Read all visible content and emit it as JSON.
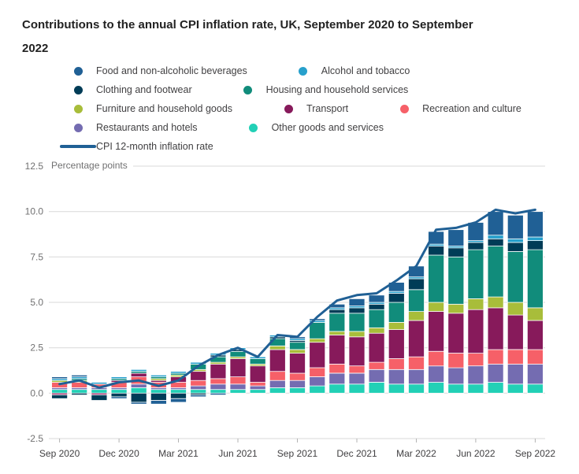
{
  "title": "Contributions to the annual CPI inflation rate, UK, September 2020 to September 2022",
  "chart_data": {
    "type": "bar",
    "subtype": "stacked-bars-with-line-overlay",
    "unit_label": "Percentage points",
    "grid": "horizontal-only",
    "legend_position": "top",
    "x": [
      "Sep 2020",
      "Oct 2020",
      "Nov 2020",
      "Dec 2020",
      "Jan 2021",
      "Feb 2021",
      "Mar 2021",
      "Apr 2021",
      "May 2021",
      "Jun 2021",
      "Jul 2021",
      "Aug 2021",
      "Sep 2021",
      "Oct 2021",
      "Nov 2021",
      "Dec 2021",
      "Jan 2022",
      "Feb 2022",
      "Mar 2022",
      "Apr 2022",
      "May 2022",
      "Jun 2022",
      "Jul 2022",
      "Aug 2022",
      "Sep 2022"
    ],
    "x_tick_every": 3,
    "x_tick_labels": [
      "Sep 2020",
      "Dec 2020",
      "Mar 2021",
      "Jun 2021",
      "Sep 2021",
      "Dec 2021",
      "Mar 2022",
      "Jun 2022",
      "Sep 2022"
    ],
    "ylim": [
      -2.5,
      12.5
    ],
    "yticks": [
      12.5,
      10.0,
      7.5,
      5.0,
      2.5,
      0.0,
      -2.5
    ],
    "series": [
      {
        "name": "Food and non-alcoholic beverages",
        "color": "#206095",
        "values": [
          0.1,
          0.1,
          0.0,
          -0.1,
          -0.1,
          -0.2,
          -0.2,
          -0.1,
          -0.1,
          0.0,
          0.0,
          0.0,
          0.1,
          0.1,
          0.2,
          0.4,
          0.4,
          0.5,
          0.6,
          0.7,
          0.9,
          1.0,
          1.3,
          1.3,
          1.4
        ]
      },
      {
        "name": "Alcohol and tobacco",
        "color": "#27a0cc",
        "values": [
          0.1,
          0.1,
          0.1,
          0.1,
          0.1,
          0.1,
          0.1,
          0.1,
          0.1,
          0.1,
          0.1,
          0.1,
          0.1,
          0.1,
          0.1,
          0.1,
          0.1,
          0.1,
          0.1,
          0.1,
          0.1,
          0.1,
          0.2,
          0.2,
          0.2
        ]
      },
      {
        "name": "Clothing and footwear",
        "color": "#003c57",
        "values": [
          -0.2,
          -0.1,
          -0.3,
          -0.2,
          -0.5,
          -0.4,
          -0.3,
          -0.1,
          0.1,
          0.1,
          0.0,
          0.1,
          0.1,
          0.0,
          0.2,
          0.3,
          0.3,
          0.5,
          0.6,
          0.5,
          0.5,
          0.4,
          0.4,
          0.5,
          0.5
        ]
      },
      {
        "name": "Housing and household services",
        "color": "#118c7b",
        "values": [
          0.0,
          0.1,
          0.0,
          0.1,
          0.1,
          0.1,
          0.1,
          0.3,
          0.3,
          0.3,
          0.3,
          0.4,
          0.4,
          0.9,
          1.0,
          1.0,
          1.0,
          1.1,
          1.2,
          2.6,
          2.6,
          2.7,
          2.8,
          2.8,
          3.2
        ]
      },
      {
        "name": "Furniture and household goods",
        "color": "#a8bd3a",
        "values": [
          0.1,
          0.1,
          0.0,
          0.0,
          0.0,
          0.1,
          0.1,
          0.1,
          0.1,
          0.1,
          0.1,
          0.2,
          0.2,
          0.2,
          0.2,
          0.3,
          0.3,
          0.4,
          0.5,
          0.5,
          0.5,
          0.6,
          0.6,
          0.7,
          0.7
        ]
      },
      {
        "name": "Transport",
        "color": "#871a5b",
        "values": [
          -0.1,
          0.0,
          -0.1,
          0.1,
          0.2,
          0.1,
          0.3,
          0.5,
          0.8,
          1.0,
          0.9,
          1.2,
          1.1,
          1.4,
          1.6,
          1.6,
          1.6,
          1.6,
          2.0,
          2.2,
          2.2,
          2.4,
          2.3,
          1.9,
          1.6
        ]
      },
      {
        "name": "Recreation and culture",
        "color": "#f66068",
        "values": [
          0.3,
          0.3,
          0.2,
          0.3,
          0.4,
          0.3,
          0.3,
          0.3,
          0.3,
          0.4,
          0.2,
          0.5,
          0.4,
          0.5,
          0.5,
          0.4,
          0.4,
          0.6,
          0.7,
          0.8,
          0.8,
          0.7,
          0.8,
          0.8,
          0.8
        ]
      },
      {
        "name": "Restaurants and hotels",
        "color": "#746cb1",
        "values": [
          0.1,
          0.1,
          0.1,
          0.1,
          0.2,
          0.1,
          0.1,
          0.2,
          0.3,
          0.3,
          0.2,
          0.4,
          0.4,
          0.5,
          0.6,
          0.6,
          0.7,
          0.8,
          0.8,
          0.9,
          0.9,
          1.0,
          1.0,
          1.1,
          1.1
        ]
      },
      {
        "name": "Other goods and services",
        "color": "#22d0b6",
        "values": [
          0.2,
          0.2,
          0.2,
          0.2,
          0.3,
          0.2,
          0.2,
          0.2,
          0.2,
          0.2,
          0.2,
          0.3,
          0.3,
          0.4,
          0.5,
          0.5,
          0.6,
          0.5,
          0.5,
          0.6,
          0.5,
          0.5,
          0.6,
          0.5,
          0.5
        ]
      }
    ],
    "line": {
      "name": "CPI 12-month inflation rate",
      "color": "#206095",
      "values": [
        0.5,
        0.7,
        0.3,
        0.6,
        0.7,
        0.4,
        0.7,
        1.5,
        2.1,
        2.5,
        2.0,
        3.2,
        3.1,
        4.2,
        5.1,
        5.4,
        5.5,
        6.2,
        7.0,
        9.0,
        9.1,
        9.4,
        10.1,
        9.9,
        10.1
      ]
    }
  }
}
